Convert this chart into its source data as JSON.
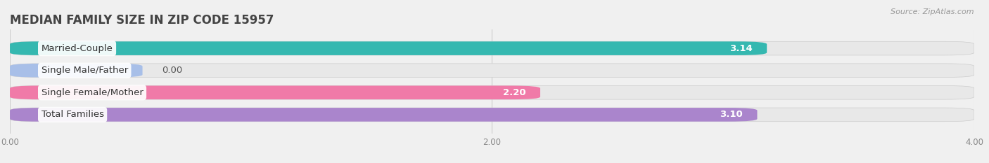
{
  "title": "MEDIAN FAMILY SIZE IN ZIP CODE 15957",
  "source": "Source: ZipAtlas.com",
  "categories": [
    "Married-Couple",
    "Single Male/Father",
    "Single Female/Mother",
    "Total Families"
  ],
  "values": [
    3.14,
    0.0,
    2.2,
    3.1
  ],
  "bar_colors": [
    "#35b8b0",
    "#a8bfe8",
    "#f07aa8",
    "#aa85cc"
  ],
  "xlim_min": 0,
  "xlim_max": 4.0,
  "xticks": [
    0.0,
    2.0,
    4.0
  ],
  "xtick_labels": [
    "0.00",
    "2.00",
    "4.00"
  ],
  "bar_height": 0.62,
  "bg_color": "#f0f0f0",
  "bar_bg_color": "#e0e0e0",
  "bar_bg_color2": "#e8e8e8",
  "label_fontsize": 9.5,
  "value_fontsize": 9.5,
  "title_fontsize": 12,
  "single_male_bar_width": 0.55
}
